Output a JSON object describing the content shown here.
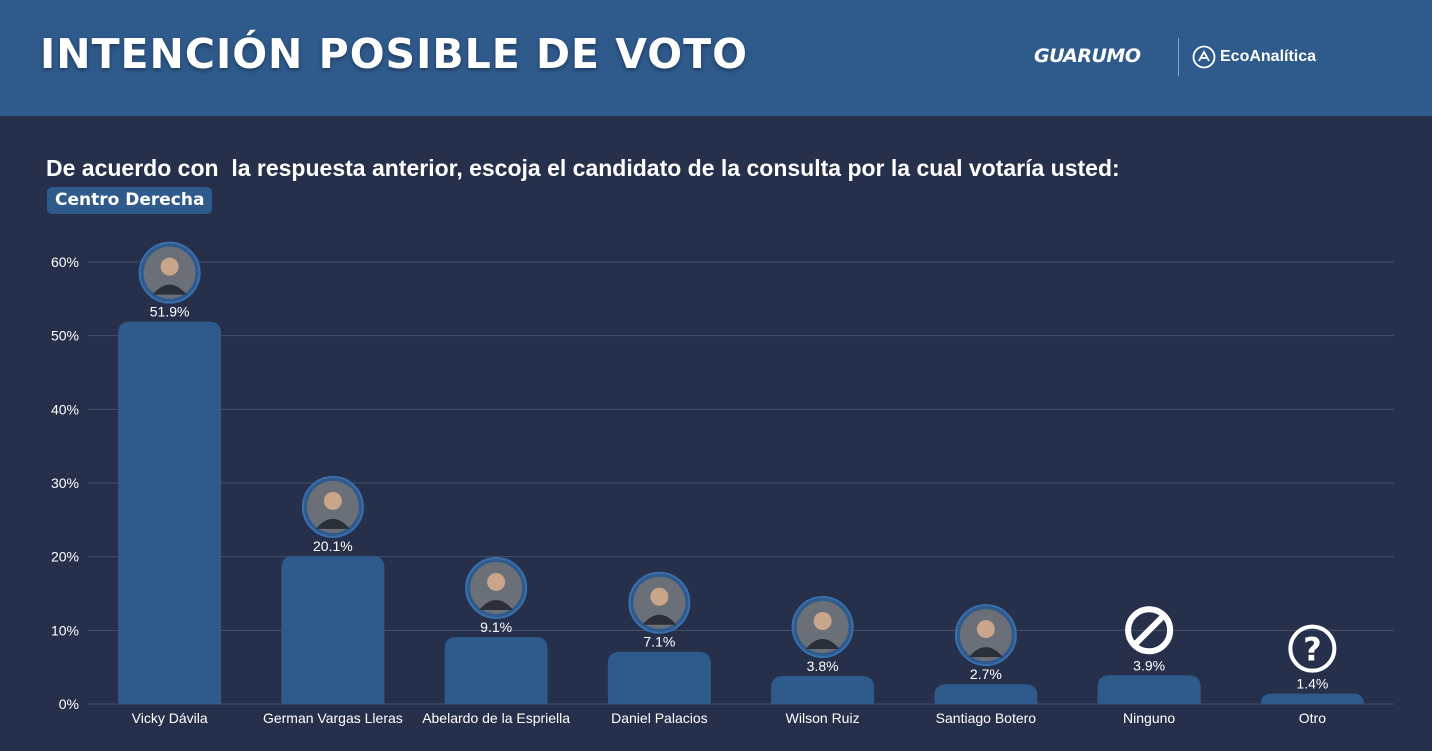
{
  "header": {
    "title": "INTENCIÓN POSIBLE DE VOTO",
    "logos": {
      "guarumo": "GUARUMO",
      "ecoanalitica": "EcoAnalítica"
    }
  },
  "question": "De acuerdo con  la respuesta anterior, escoja el candidato de la consulta por la cual votaría usted:",
  "tag": "Centro Derecha",
  "colors": {
    "background": "#27304a",
    "header": "#2f5a8c",
    "bar": "#2f5a8c",
    "grid": "#46506a"
  },
  "chart_data": {
    "type": "bar",
    "categories": [
      "Vicky Dávila",
      "German Vargas Lleras",
      "Abelardo de la Espriella",
      "Daniel Palacios",
      "Wilson Ruiz",
      "Santiago Botero",
      "Ninguno",
      "Otro"
    ],
    "values": [
      51.9,
      20.1,
      9.1,
      7.1,
      3.8,
      2.7,
      3.9,
      1.4
    ],
    "data_labels": [
      "51.9%",
      "20.1%",
      "9.1%",
      "7.1%",
      "3.8%",
      "2.7%",
      "3.9%",
      "1.4%"
    ],
    "icons": [
      "candidate-photo",
      "candidate-photo",
      "candidate-photo",
      "candidate-photo",
      "candidate-photo",
      "candidate-photo",
      "prohibited-icon",
      "question-icon"
    ],
    "yticks": [
      0,
      10,
      20,
      30,
      40,
      50,
      60
    ],
    "ytick_labels": [
      "0%",
      "10%",
      "20%",
      "30%",
      "40%",
      "50%",
      "60%"
    ],
    "ylim": [
      0,
      60
    ],
    "grid": true,
    "title": "",
    "xlabel": "",
    "ylabel": ""
  }
}
